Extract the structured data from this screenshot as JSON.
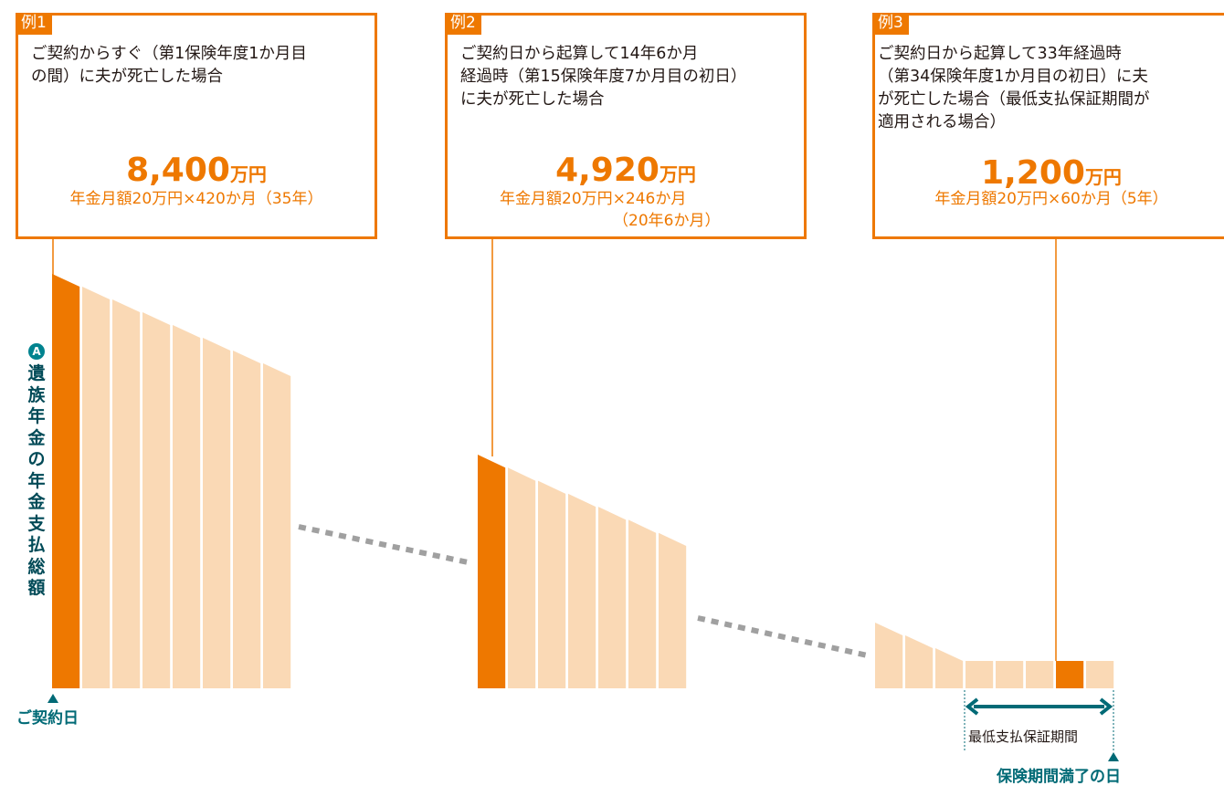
{
  "examples": [
    {
      "tag": "例1",
      "lines": [
        "ご契約からすぐ（第1保険年度1か月目",
        "の間）に夫が死亡した場合"
      ],
      "amount": "8,400",
      "unit": "万円",
      "calc": [
        "年金月額20万円×420か月（35年）"
      ]
    },
    {
      "tag": "例2",
      "lines": [
        "ご契約日から起算して14年6か月",
        "経過時（第15保険年度7か月目の初日）",
        "に夫が死亡した場合"
      ],
      "amount": "4,920",
      "unit": "万円",
      "calc": [
        "年金月額20万円×246か月",
        "（20年6か月）"
      ]
    },
    {
      "tag": "例3",
      "lines": [
        "ご契約日から起算して33年経過時",
        "（第34保険年度1か月目の初日）に夫",
        "が死亡した場合（最低支払保証期間が",
        "適用される場合）"
      ],
      "amount": "1,200",
      "unit": "万円",
      "calc": [
        "年金月額20万円×60か月（5年）"
      ]
    }
  ],
  "y_axis": {
    "badge": "A",
    "label": "遺族年金の年金支払総額"
  },
  "labels": {
    "contract_date": "ご契約日",
    "min_guarantee": "最低支払保証期間",
    "end_date": "保険期間満了の日"
  },
  "colors": {
    "accent": "#ee7800",
    "bar_light": "#fad9b5",
    "teal": "#006a76",
    "dash": "#a0a0a0"
  }
}
